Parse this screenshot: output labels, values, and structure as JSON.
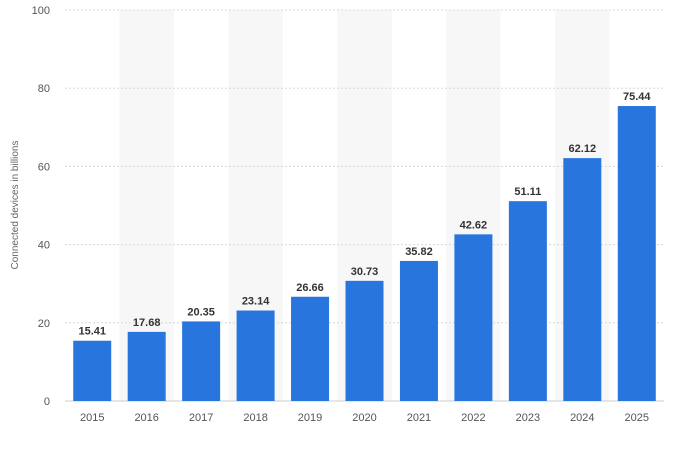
{
  "chart_data": {
    "type": "bar",
    "categories": [
      "2015",
      "2016",
      "2017",
      "2018",
      "2019",
      "2020",
      "2021",
      "2022",
      "2023",
      "2024",
      "2025"
    ],
    "values": [
      15.41,
      17.68,
      20.35,
      23.14,
      26.66,
      30.73,
      35.82,
      42.62,
      51.11,
      62.12,
      75.44
    ],
    "value_labels": [
      "15.41",
      "17.68",
      "20.35",
      "23.14",
      "26.66",
      "30.73",
      "35.82",
      "42.62",
      "51.11",
      "62.12",
      "75.44"
    ],
    "ylabel": "Connected devices in billions",
    "ylim": [
      0,
      100
    ],
    "yticks": [
      "0",
      "20",
      "40",
      "60",
      "80",
      "100"
    ],
    "grid": true,
    "colors": {
      "bar": "#2876dd",
      "band": "#f7f7f7",
      "grid": "#d8d8d8"
    }
  }
}
